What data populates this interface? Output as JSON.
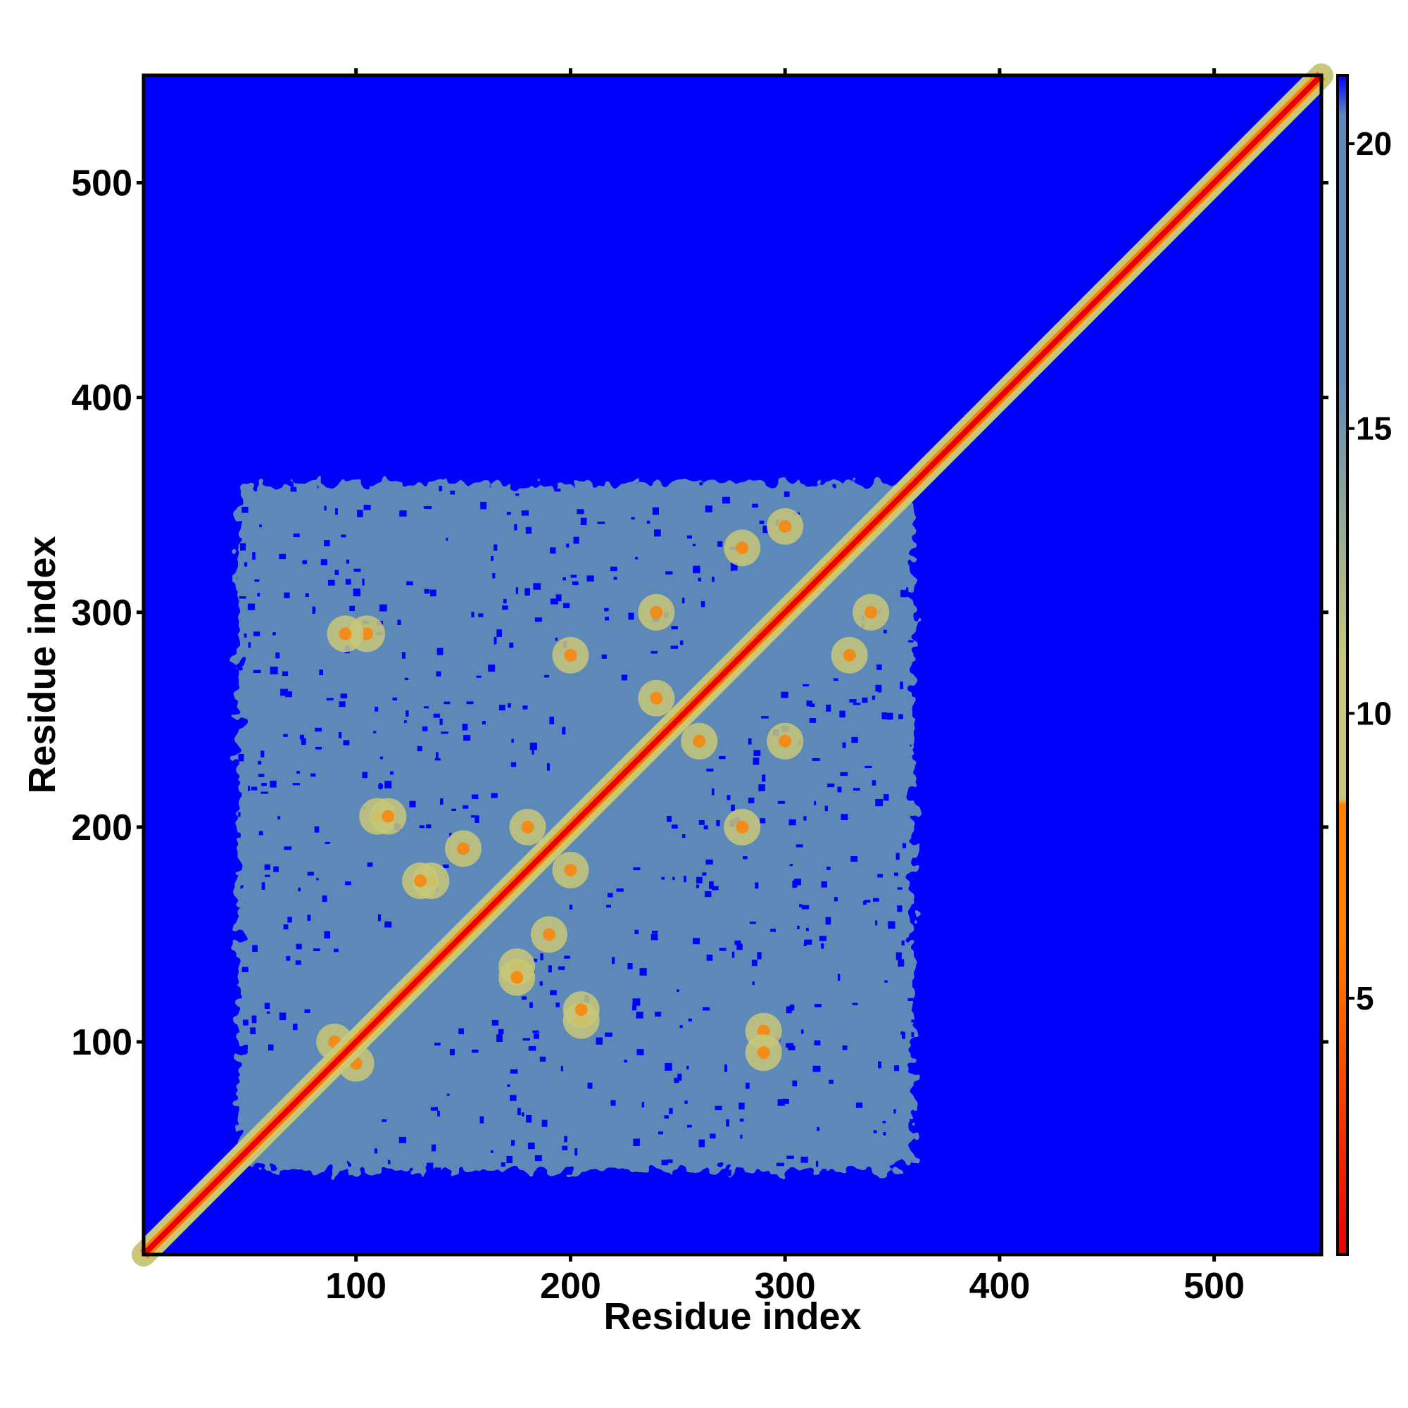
{
  "chart_data": {
    "type": "heatmap",
    "title": "",
    "xlabel": "Residue index",
    "ylabel": "Residue index",
    "xlim": [
      1,
      550
    ],
    "ylim": [
      1,
      550
    ],
    "x_ticks": [
      100,
      200,
      300,
      400,
      500
    ],
    "y_ticks": [
      100,
      200,
      300,
      400,
      500
    ],
    "n_residues": 550,
    "colorbar": {
      "range": [
        0.5,
        21.2
      ],
      "ticks": [
        5,
        10,
        15,
        20
      ],
      "colors": {
        "near": "#e80000",
        "close": "#ff7f00",
        "mid": "#c8c878",
        "far": "#5b89b8",
        "none": "#0000ff"
      }
    },
    "regions": {
      "diagonal_band": {
        "from": 1,
        "to": 550,
        "value": 1
      },
      "structured_domain": {
        "x_range": [
          45,
          360
        ],
        "y_range": [
          40,
          360
        ],
        "background_value": 17
      },
      "contacts": [
        {
          "x": 110,
          "y": 205,
          "value": 9
        },
        {
          "x": 200,
          "y": 180,
          "value": 8
        },
        {
          "x": 175,
          "y": 135,
          "value": 8
        },
        {
          "x": 205,
          "y": 115,
          "value": 7
        },
        {
          "x": 290,
          "y": 105,
          "value": 8
        },
        {
          "x": 95,
          "y": 290,
          "value": 9
        },
        {
          "x": 300,
          "y": 340,
          "value": 8
        },
        {
          "x": 240,
          "y": 300,
          "value": 9
        },
        {
          "x": 280,
          "y": 200,
          "value": 8
        },
        {
          "x": 330,
          "y": 280,
          "value": 9
        },
        {
          "x": 260,
          "y": 240,
          "value": 8
        },
        {
          "x": 90,
          "y": 100,
          "value": 8
        },
        {
          "x": 150,
          "y": 190,
          "value": 9
        },
        {
          "x": 130,
          "y": 175,
          "value": 9
        }
      ]
    }
  }
}
